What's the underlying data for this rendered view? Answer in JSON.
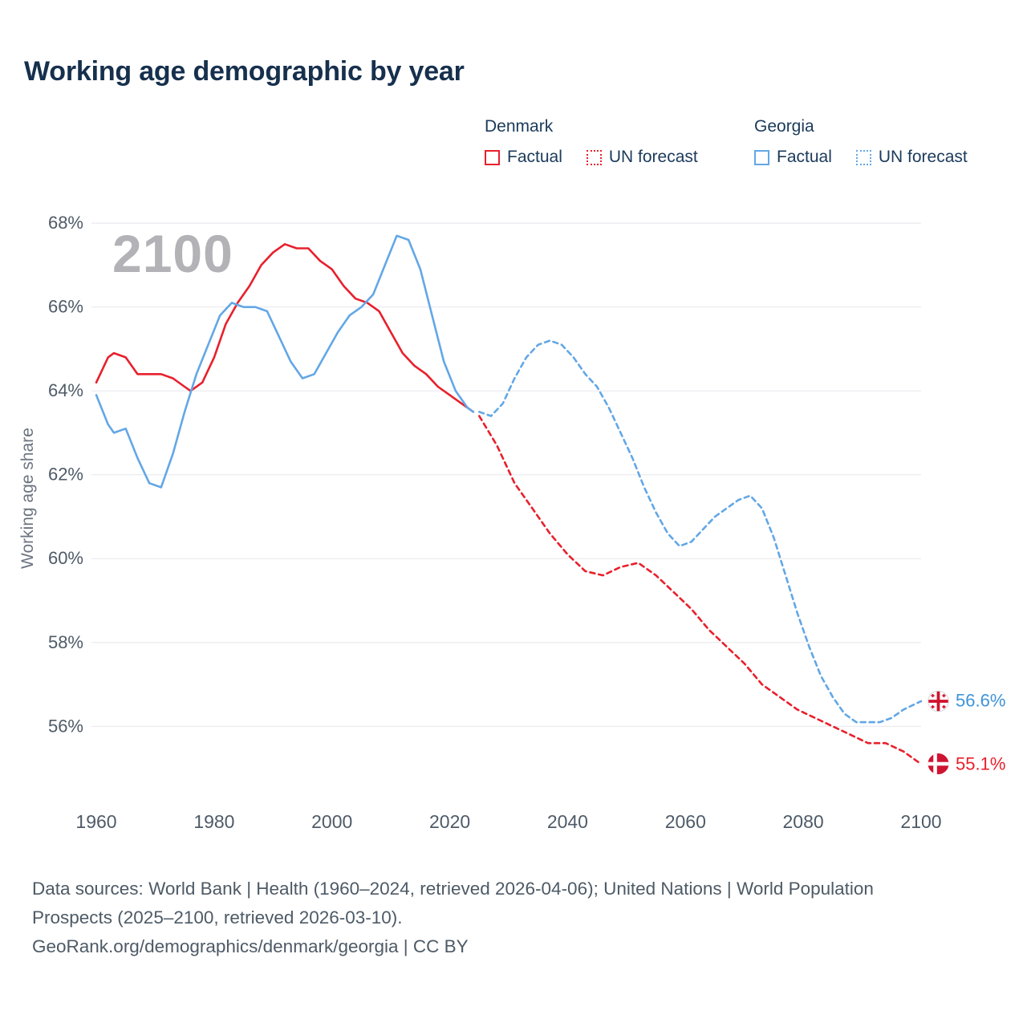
{
  "title": "Working age demographic by year",
  "watermark": "2100",
  "ylabel": "Working age share",
  "colors": {
    "denmark": "#e8202c",
    "georgia": "#63a7e6",
    "georgia_label": "#3f93da",
    "grid": "#eaeaef",
    "tick_text": "#4e5b68",
    "title_text": "#16304d",
    "footer_text": "#4d5a66"
  },
  "legend": {
    "groups": [
      {
        "country": "Denmark",
        "color": "#e8202c",
        "items": [
          {
            "label": "Factual",
            "style": "solid"
          },
          {
            "label": "UN forecast",
            "style": "dotted"
          }
        ]
      },
      {
        "country": "Georgia",
        "color": "#63a7e6",
        "items": [
          {
            "label": "Factual",
            "style": "solid"
          },
          {
            "label": "UN forecast",
            "style": "dotted"
          }
        ]
      }
    ]
  },
  "end_labels": [
    {
      "country": "Georgia",
      "value": "56.6%",
      "y_value": 56.6,
      "color": "#3f93da"
    },
    {
      "country": "Denmark",
      "value": "55.1%",
      "y_value": 55.1,
      "color": "#e8202c"
    }
  ],
  "footer": {
    "sources": "Data sources: World Bank | Health (1960–2024, retrieved 2026-04-06); United Nations | World Population Prospects (2025–2100, retrieved 2026-03-10).",
    "attribution": "GeoRank.org/demographics/denmark/georgia | CC BY"
  },
  "chart_data": {
    "type": "line",
    "title": "Working age demographic by year",
    "xlabel": "",
    "ylabel": "Working age share",
    "x_range": [
      1960,
      2100
    ],
    "y_range": [
      54.8,
      68.5
    ],
    "x_ticks": [
      1960,
      1980,
      2000,
      2020,
      2040,
      2060,
      2080,
      2100
    ],
    "y_ticks": [
      56,
      58,
      60,
      62,
      64,
      66,
      68
    ],
    "grid": "horizontal",
    "legend_position": "top-right",
    "series": [
      {
        "name": "Denmark Factual",
        "color": "#e8202c",
        "style": "solid",
        "x": [
          1960,
          1962,
          1963,
          1965,
          1967,
          1969,
          1971,
          1973,
          1975,
          1976,
          1978,
          1980,
          1982,
          1984,
          1986,
          1988,
          1990,
          1992,
          1994,
          1996,
          1998,
          2000,
          2002,
          2004,
          2006,
          2008,
          2010,
          2012,
          2014,
          2016,
          2018,
          2020,
          2022,
          2024
        ],
        "y": [
          64.2,
          64.8,
          64.9,
          64.8,
          64.4,
          64.4,
          64.4,
          64.3,
          64.1,
          64.0,
          64.2,
          64.8,
          65.6,
          66.1,
          66.5,
          67.0,
          67.3,
          67.5,
          67.4,
          67.4,
          67.1,
          66.9,
          66.5,
          66.2,
          66.1,
          65.9,
          65.4,
          64.9,
          64.6,
          64.4,
          64.1,
          63.9,
          63.7,
          63.5
        ]
      },
      {
        "name": "Denmark UN forecast",
        "color": "#e8202c",
        "style": "dashed",
        "x": [
          2025,
          2028,
          2031,
          2034,
          2037,
          2040,
          2043,
          2046,
          2049,
          2052,
          2055,
          2058,
          2061,
          2064,
          2067,
          2070,
          2073,
          2076,
          2079,
          2082,
          2085,
          2088,
          2091,
          2094,
          2097,
          2100
        ],
        "y": [
          63.4,
          62.7,
          61.8,
          61.2,
          60.6,
          60.1,
          59.7,
          59.6,
          59.8,
          59.9,
          59.6,
          59.2,
          58.8,
          58.3,
          57.9,
          57.5,
          57.0,
          56.7,
          56.4,
          56.2,
          56.0,
          55.8,
          55.6,
          55.6,
          55.4,
          55.1
        ]
      },
      {
        "name": "Georgia Factual",
        "color": "#63a7e6",
        "style": "solid",
        "x": [
          1960,
          1962,
          1963,
          1965,
          1967,
          1969,
          1971,
          1973,
          1975,
          1977,
          1979,
          1981,
          1983,
          1985,
          1987,
          1989,
          1991,
          1993,
          1995,
          1997,
          1999,
          2001,
          2003,
          2005,
          2007,
          2009,
          2011,
          2013,
          2015,
          2017,
          2019,
          2021,
          2023,
          2024
        ],
        "y": [
          63.9,
          63.2,
          63.0,
          63.1,
          62.4,
          61.8,
          61.7,
          62.5,
          63.5,
          64.4,
          65.1,
          65.8,
          66.1,
          66.0,
          66.0,
          65.9,
          65.3,
          64.7,
          64.3,
          64.4,
          64.9,
          65.4,
          65.8,
          66.0,
          66.3,
          67.0,
          67.7,
          67.6,
          66.9,
          65.8,
          64.7,
          64.0,
          63.6,
          63.5
        ]
      },
      {
        "name": "Georgia UN forecast",
        "color": "#63a7e6",
        "style": "dashed",
        "x": [
          2025,
          2027,
          2029,
          2031,
          2033,
          2035,
          2037,
          2039,
          2041,
          2043,
          2045,
          2047,
          2049,
          2051,
          2053,
          2055,
          2057,
          2059,
          2061,
          2063,
          2065,
          2067,
          2069,
          2071,
          2073,
          2075,
          2077,
          2079,
          2081,
          2083,
          2085,
          2087,
          2089,
          2091,
          2093,
          2095,
          2097,
          2100
        ],
        "y": [
          63.5,
          63.4,
          63.7,
          64.3,
          64.8,
          65.1,
          65.2,
          65.1,
          64.8,
          64.4,
          64.1,
          63.6,
          63.0,
          62.4,
          61.7,
          61.1,
          60.6,
          60.3,
          60.4,
          60.7,
          61.0,
          61.2,
          61.4,
          61.5,
          61.2,
          60.5,
          59.6,
          58.7,
          57.9,
          57.2,
          56.7,
          56.3,
          56.1,
          56.1,
          56.1,
          56.2,
          56.4,
          56.6
        ]
      }
    ]
  }
}
